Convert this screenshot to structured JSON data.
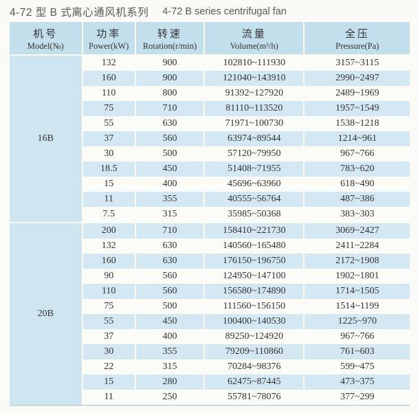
{
  "title": {
    "cn": "4-72 型 B 式离心通风机系列",
    "en": "4-72 B series centrifugal fan"
  },
  "colors": {
    "header_blue": "#c3dfec",
    "stripe_blue": "#d3e8f2",
    "model_column_blue": "#cfe6f1",
    "paper": "#fafaf6",
    "text": "#333333"
  },
  "table": {
    "headers": [
      {
        "cn": "机号",
        "en": "Model(№)"
      },
      {
        "cn": "功率",
        "en": "Power(kW)"
      },
      {
        "cn": "转速",
        "en": "Rotation(r/min)"
      },
      {
        "cn": "流量",
        "en": "Volume(m³/h)"
      },
      {
        "cn": "全压",
        "en": "Pressure(Pa)"
      }
    ],
    "sections": [
      {
        "model": "16B",
        "rows": [
          [
            "132",
            "900",
            "102810~111930",
            "3157~3115"
          ],
          [
            "160",
            "900",
            "121040~143910",
            "2990~2497"
          ],
          [
            "110",
            "800",
            "91392~127920",
            "2489~1969"
          ],
          [
            "75",
            "710",
            "81110~113520",
            "1957~1549"
          ],
          [
            "55",
            "630",
            "71971~100730",
            "1538~1218"
          ],
          [
            "37",
            "560",
            "63974~89544",
            "1214~961"
          ],
          [
            "30",
            "500",
            "57120~79950",
            "967~766"
          ],
          [
            "18.5",
            "450",
            "51408~71955",
            "783~620"
          ],
          [
            "15",
            "400",
            "45696~63960",
            "618~490"
          ],
          [
            "11",
            "355",
            "40555~56764",
            "487~386"
          ],
          [
            "7.5",
            "315",
            "35985~50368",
            "383~303"
          ]
        ]
      },
      {
        "model": "20B",
        "rows": [
          [
            "200",
            "710",
            "158410~221730",
            "3069~2427"
          ],
          [
            "132",
            "630",
            "140560~165480",
            "2411~2284"
          ],
          [
            "160",
            "630",
            "176150~196750",
            "2172~1908"
          ],
          [
            "90",
            "560",
            "124950~147100",
            "1902~1801"
          ],
          [
            "110",
            "560",
            "156580~174890",
            "1714~1505"
          ],
          [
            "75",
            "500",
            "111560~156150",
            "1514~1199"
          ],
          [
            "55",
            "450",
            "100400~140530",
            "1225~970"
          ],
          [
            "37",
            "400",
            "89250~124920",
            "967~766"
          ],
          [
            "30",
            "355",
            "79209~110860",
            "761~603"
          ],
          [
            "22",
            "315",
            "70284~98376",
            "599~475"
          ],
          [
            "15",
            "280",
            "62475~87445",
            "473~375"
          ],
          [
            "11",
            "250",
            "55781~78076",
            "377~299"
          ]
        ]
      }
    ]
  }
}
